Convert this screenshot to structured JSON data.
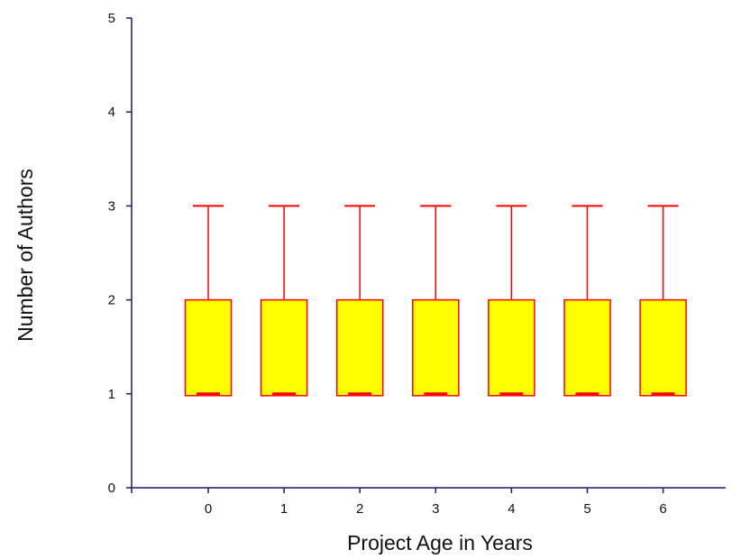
{
  "chart_data": {
    "type": "box",
    "xlabel": "Project Age in Years",
    "ylabel": "Number of Authors",
    "categories": [
      "0",
      "1",
      "2",
      "3",
      "4",
      "5",
      "6"
    ],
    "ylim": [
      0,
      5
    ],
    "yticks": [
      "0",
      "1",
      "2",
      "3",
      "4",
      "5"
    ],
    "boxes": [
      {
        "category": "0",
        "min": 1,
        "q1": 1,
        "median": 1,
        "q3": 2,
        "max": 3
      },
      {
        "category": "1",
        "min": 1,
        "q1": 1,
        "median": 1,
        "q3": 2,
        "max": 3
      },
      {
        "category": "2",
        "min": 1,
        "q1": 1,
        "median": 1,
        "q3": 2,
        "max": 3
      },
      {
        "category": "3",
        "min": 1,
        "q1": 1,
        "median": 1,
        "q3": 2,
        "max": 3
      },
      {
        "category": "4",
        "min": 1,
        "q1": 1,
        "median": 1,
        "q3": 2,
        "max": 3
      },
      {
        "category": "5",
        "min": 1,
        "q1": 1,
        "median": 1,
        "q3": 2,
        "max": 3
      },
      {
        "category": "6",
        "min": 1,
        "q1": 1,
        "median": 1,
        "q3": 2,
        "max": 3
      }
    ],
    "grid": false,
    "colors": {
      "axis": "#1a1a6e",
      "box_fill": "#ffff00",
      "box_stroke": "#ff0000",
      "whisker": "#ff0000"
    }
  }
}
